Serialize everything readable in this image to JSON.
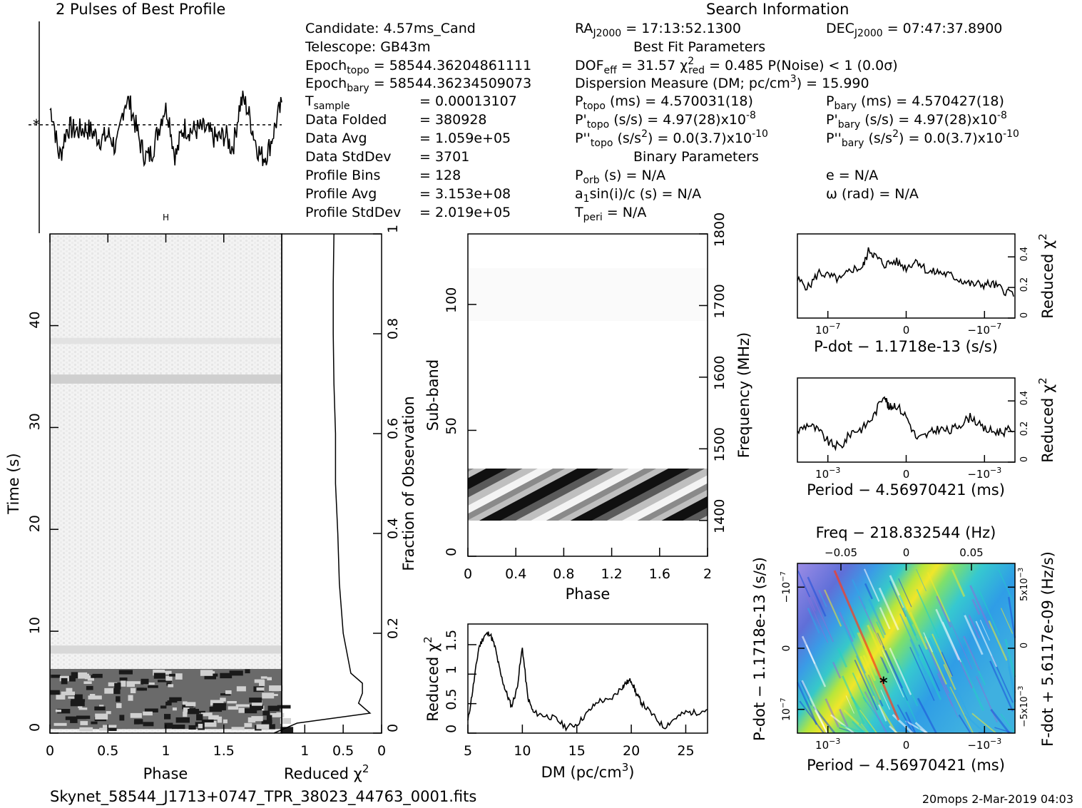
{
  "profile": {
    "title": "2 Pulses of Best Profile"
  },
  "search_title": "Search Information",
  "info": {
    "candidate": "Candidate:  4.57ms_Cand",
    "telescope": "Telescope:  GB43m",
    "epoch_topo": "Epoch",
    "epoch_topo_sub": "topo",
    "epoch_topo_val": " = 58544.36204861111",
    "epoch_bary": "Epoch",
    "epoch_bary_sub": "bary",
    "epoch_bary_val": " = 58544.36234509073",
    "tsample": "T",
    "tsample_sub": "sample",
    "tsample_val": "=   0.00013107",
    "data_folded": "Data Folded",
    "data_folded_val": "=   380928",
    "data_avg": "Data Avg",
    "data_avg_val": "=   1.059e+05",
    "data_std": "Data StdDev",
    "data_std_val": "=   3701",
    "prof_bins": "Profile Bins",
    "prof_bins_val": "=   128",
    "prof_avg": "Profile Avg",
    "prof_avg_val": "=   3.153e+08",
    "prof_std": "Profile StdDev",
    "prof_std_val": "=   2.019e+05",
    "ra": "RA",
    "ra_sub": "J2000",
    "ra_val": " = 17:13:52.1300",
    "dec": "DEC",
    "dec_sub": "J2000",
    "dec_val": " = 07:47:37.8900",
    "best_fit": "Best Fit Parameters",
    "dof": "DOF",
    "dof_sub": "eff",
    "dof_val": " = 31.57  χ",
    "chi_sup": "2",
    "chi_sub": "red",
    "chi_val": " = 0.485  P(Noise) < 1   (0.0σ)",
    "dm_line": "Dispersion Measure (DM; pc/cm",
    "dm_sup": "3",
    "dm_val": ") = 15.990",
    "ptopo": "P",
    "ptopo_sub": "topo",
    "ptopo_val": " (ms) =  4.570031(18)",
    "pbary": "P",
    "pbary_sub": "bary",
    "pbary_val": " (ms) =  4.570427(18)",
    "pdtopo": "P'",
    "pdtopo_sub": "topo",
    "pdtopo_val": " (s/s) =  4.97(28)x10",
    "pdtopo_exp": "-8",
    "pdbary": "P'",
    "pdbary_sub": "bary",
    "pdbary_val": " (s/s) =  4.97(28)x10",
    "pdbary_exp": "-8",
    "pddtopo": "P''",
    "pddtopo_sub": "topo",
    "pddtopo_val": " (s/s",
    "pddtopo_sup": "2",
    "pddtopo_val2": ") = 0.0(3.7)x10",
    "pddtopo_exp": "-10",
    "pddbary": "P''",
    "pddbary_sub": "bary",
    "pddbary_val": " (s/s",
    "pddbary_sup": "2",
    "pddbary_val2": ") = 0.0(3.7)x10",
    "pddbary_exp": "-10",
    "binary": "Binary Parameters",
    "porb": "P",
    "porb_sub": "orb",
    "porb_val": " (s) = N/A",
    "ecc": "e = N/A",
    "a1": "a",
    "a1_sub": "1",
    "a1_val": "sin(i)/c (s) = N/A",
    "omega": "ω (rad) = N/A",
    "tperi": "T",
    "tperi_sub": "peri",
    "tperi_val": " = N/A"
  },
  "labels": {
    "phase": "Phase",
    "time": "Time (s)",
    "reduced_chi": "Reduced χ",
    "chi_sup": "2",
    "fraction": "Fraction of Observation",
    "subband": "Sub-band",
    "frequency": "Frequency (MHz)",
    "dm_axis": "DM (pc/cm",
    "dm_axis_sup": "3",
    "dm_axis_end": ")",
    "pdot_axis": "P-dot − 1.1718e-13 (s/s)",
    "period_axis": "Period − 4.56970421 (ms)",
    "freq_axis": "Freq − 218.832544 (Hz)",
    "fdot_axis": "F-dot + 5.6117e-09 (Hz/s)"
  },
  "footer": {
    "filename": "Skynet_58544_J1713+0747_TPR_38023_44763_0001.fits",
    "stamp": "20mops  2-Mar-2019 04:03"
  },
  "ticks": {
    "time_y": [
      "0",
      "10",
      "20",
      "30",
      "40"
    ],
    "phase_x": [
      "0",
      "0.5",
      "1",
      "1.5"
    ],
    "redchi_x": [
      "1",
      "0.5",
      "0"
    ],
    "fraction_y": [
      "0",
      "0.2",
      "0.4",
      "0.6",
      "0.8",
      "1"
    ],
    "subband_y": [
      "0",
      "50",
      "100"
    ],
    "freq_y": [
      "1400",
      "1500",
      "1600",
      "1700",
      "1800"
    ],
    "subphase_x": [
      "0",
      "0.4",
      "0.8",
      "1.2",
      "1.6",
      "2"
    ],
    "dm_x": [
      "5",
      "10",
      "15",
      "20",
      "25"
    ],
    "dm_y": [
      "0",
      "0.5",
      "1",
      "1.5"
    ],
    "rc_y": [
      "0",
      "0.2",
      "0.4"
    ],
    "pdot_x": [
      "10",
      "0",
      "−10"
    ],
    "pdot_x_exp": "−7",
    "period_x": [
      "10",
      "0",
      "−10"
    ],
    "period_x_exp": "−3",
    "freq_top": [
      "−0.05",
      "0",
      "0.05"
    ],
    "pd_y_left": [
      "−10",
      "0",
      "10"
    ],
    "pd_y_exp": "−7",
    "fd_y_right": [
      "5x10",
      "0",
      "−5x10"
    ],
    "fd_y_exp": "−3"
  },
  "colors": {
    "ppdot_low": "#8a6fd8",
    "ppdot_mid": "#2fa8e8",
    "ppdot_mid2": "#22cfc4",
    "ppdot_high": "#f3ea2a",
    "ppdot_peak": "#ff3a1a"
  },
  "chart_data": [
    {
      "type": "line",
      "name": "profile",
      "title": "2 Pulses of Best Profile",
      "x_range": [
        0,
        2
      ],
      "note_values": "two repeated pulse periods, strong dips near phase 0.1, 0.6, 1.1, 1.6"
    },
    {
      "type": "heatmap",
      "name": "time-phase",
      "xlabel": "Phase",
      "ylabel": "Time (s)",
      "xlim": [
        0,
        2
      ],
      "ylim": [
        0,
        49
      ],
      "fraction_ylim": [
        0,
        1
      ]
    },
    {
      "type": "line",
      "name": "reduced-chi-vs-time",
      "xlabel": "Reduced χ2",
      "xlim": [
        1.3,
        0
      ],
      "y_fraction": [
        0.0,
        0.02,
        0.04,
        0.06,
        0.08,
        0.1,
        0.12,
        0.2,
        0.3,
        0.4,
        0.5,
        0.6,
        0.7,
        0.8,
        0.9,
        1.0
      ],
      "values": [
        1.4,
        1.1,
        0.15,
        0.3,
        0.25,
        0.25,
        0.4,
        0.5,
        0.55,
        0.57,
        0.6,
        0.6,
        0.62,
        0.63,
        0.63,
        0.62
      ]
    },
    {
      "type": "heatmap",
      "name": "subband-phase",
      "xlabel": "Phase",
      "ylabel": "Sub-band",
      "y2label": "Frequency (MHz)",
      "xlim": [
        0,
        2
      ],
      "ylim": [
        0,
        128
      ],
      "freq_lim": [
        1350,
        1800
      ]
    },
    {
      "type": "line",
      "name": "dm-curve",
      "xlabel": "DM (pc/cm3)",
      "ylabel": "Reduced χ2",
      "xlim": [
        5,
        27
      ],
      "ylim": [
        0,
        1.85
      ],
      "x": [
        5,
        5.5,
        6,
        6.5,
        7,
        7.5,
        8,
        8.5,
        9,
        9.5,
        10,
        10.5,
        11,
        12,
        13,
        14,
        15,
        16,
        17,
        18,
        19,
        19.5,
        20,
        20.5,
        21,
        22,
        23,
        24,
        25,
        26,
        27
      ],
      "values": [
        0.2,
        0.8,
        1.45,
        1.65,
        1.7,
        1.45,
        1.0,
        0.7,
        0.45,
        0.75,
        1.45,
        0.6,
        0.35,
        0.3,
        0.25,
        0.1,
        0.15,
        0.35,
        0.55,
        0.55,
        0.75,
        0.85,
        0.9,
        0.65,
        0.5,
        0.3,
        0.1,
        0.25,
        0.35,
        0.35,
        0.4
      ]
    },
    {
      "type": "line",
      "name": "pdot-curve",
      "xlabel": "P-dot − 1.1718e-13 (s/s)",
      "ylabel": "Reduced χ2",
      "ylim": [
        0,
        0.55
      ],
      "x_frac": [
        0,
        0.05,
        0.1,
        0.15,
        0.2,
        0.25,
        0.3,
        0.33,
        0.36,
        0.4,
        0.45,
        0.5,
        0.55,
        0.6,
        0.65,
        0.7,
        0.75,
        0.8,
        0.85,
        0.9,
        0.95,
        1.0
      ],
      "values": [
        0.25,
        0.2,
        0.3,
        0.27,
        0.25,
        0.32,
        0.33,
        0.45,
        0.4,
        0.35,
        0.37,
        0.33,
        0.38,
        0.3,
        0.3,
        0.28,
        0.25,
        0.22,
        0.22,
        0.22,
        0.18,
        0.16
      ]
    },
    {
      "type": "line",
      "name": "period-curve",
      "xlabel": "Period − 4.56970421 (ms)",
      "ylabel": "Reduced χ2",
      "ylim": [
        0,
        0.55
      ],
      "x_frac": [
        0,
        0.05,
        0.1,
        0.15,
        0.2,
        0.25,
        0.3,
        0.35,
        0.4,
        0.42,
        0.45,
        0.5,
        0.55,
        0.6,
        0.65,
        0.7,
        0.75,
        0.8,
        0.85,
        0.9,
        0.95,
        1.0
      ],
      "values": [
        0.2,
        0.25,
        0.2,
        0.12,
        0.1,
        0.2,
        0.22,
        0.3,
        0.45,
        0.35,
        0.38,
        0.3,
        0.15,
        0.18,
        0.22,
        0.2,
        0.25,
        0.3,
        0.22,
        0.2,
        0.2,
        0.22
      ]
    },
    {
      "type": "heatmap",
      "name": "p-pdot-plane",
      "xlabel": "Period − 4.56970421 (ms)",
      "ylabel": "P-dot − 1.1718e-13 (s/s)",
      "x2label": "Freq − 218.832544 (Hz)",
      "y2label": "F-dot + 5.6117e-09 (Hz/s)"
    }
  ]
}
